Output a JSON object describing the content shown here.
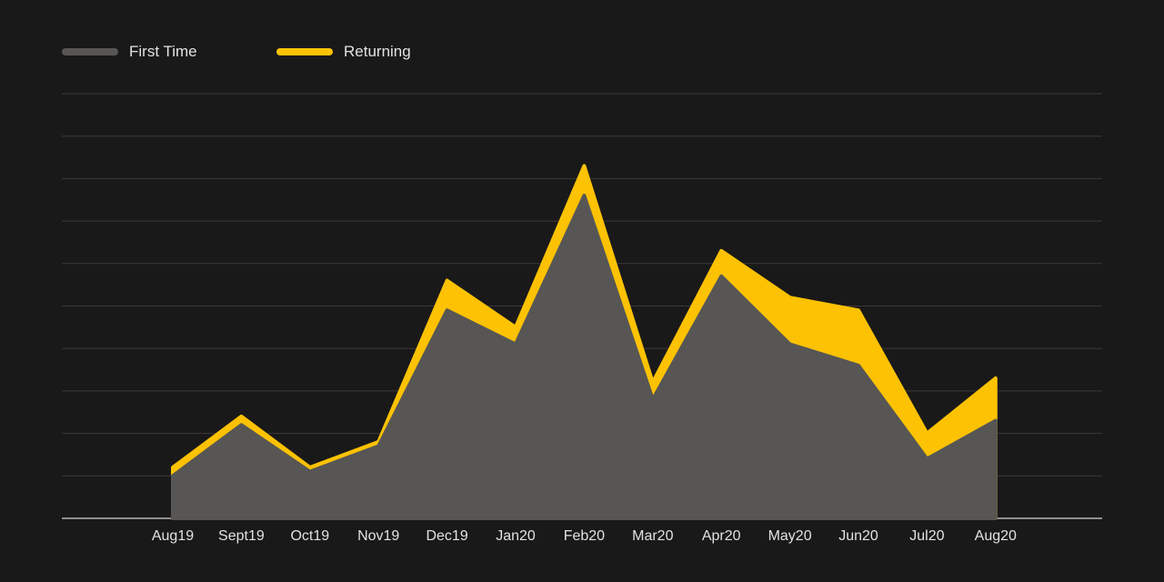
{
  "chart_data": {
    "type": "area",
    "stacked": true,
    "categories": [
      "Aug19",
      "Sept19",
      "Oct19",
      "Nov19",
      "Dec19",
      "Jan20",
      "Feb20",
      "Mar20",
      "Apr20",
      "May20",
      "Jun20",
      "Jul20",
      "Aug20"
    ],
    "series": [
      {
        "name": "First Time",
        "color": "#575654",
        "values": [
          10,
          22,
          11,
          17,
          49,
          41,
          76,
          28,
          57,
          41,
          36,
          14,
          23
        ]
      },
      {
        "name": "Returning",
        "color": "#fcc203",
        "values": [
          2,
          2,
          1,
          1,
          7,
          4,
          7,
          4,
          6,
          11,
          13,
          6,
          10
        ]
      }
    ],
    "ylim": [
      0,
      100
    ],
    "grid": true,
    "legend": "top-left",
    "background": "#1a1919"
  }
}
